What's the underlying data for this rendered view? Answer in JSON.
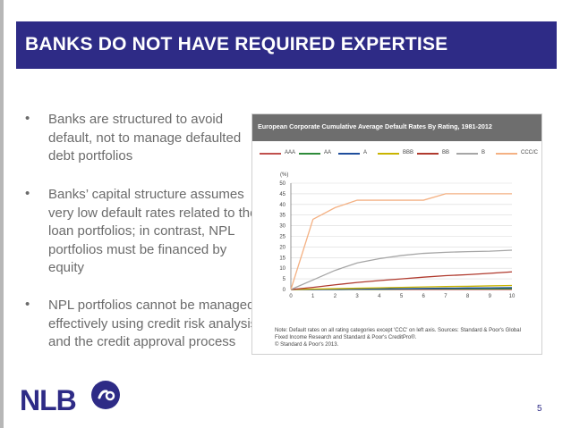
{
  "slide": {
    "title": "BANKS DO NOT HAVE REQUIRED EXPERTISE",
    "bullets": [
      {
        "marker": "•",
        "text": "Banks are structured to avoid default, not to manage defaulted debt portfolios"
      },
      {
        "marker": "•",
        "text": "Banks’ capital structure assumes very low default rates related to the loan portfolios; in contrast, NPL portfolios must be financed by equity"
      },
      {
        "marker": "•",
        "text": "NPL portfolios cannot be managed effectively using credit risk analysis and the credit approval process"
      }
    ],
    "page_number": "5",
    "logo_text": "NLB",
    "colors": {
      "brand": "#2e2b86",
      "text": "#6b6b6b",
      "chart_header": "#6e6e6e"
    }
  },
  "chart_data": {
    "type": "line",
    "title": "European Corporate Cumulative Average Default Rates By Rating, 1981-2012",
    "ylabel": "(%)",
    "xlabel": "",
    "x": [
      0,
      1,
      2,
      3,
      4,
      5,
      6,
      7,
      8,
      9,
      10
    ],
    "xticks": [
      "0",
      "1",
      "2",
      "3",
      "4",
      "5",
      "6",
      "7",
      "8",
      "9",
      "10"
    ],
    "yticks": [
      "0",
      "5",
      "10",
      "15",
      "20",
      "25",
      "30",
      "35",
      "40",
      "45",
      "50"
    ],
    "xlim": [
      0,
      10
    ],
    "ylim": [
      0,
      50
    ],
    "grid": true,
    "legend_position": "top",
    "series": [
      {
        "name": "AAA",
        "color": "#c0504d",
        "values": [
          0,
          0,
          0,
          0,
          0,
          0,
          0,
          0,
          0,
          0,
          0
        ]
      },
      {
        "name": "AA",
        "color": "#2e8b3a",
        "values": [
          0,
          0,
          0,
          0.1,
          0.1,
          0.2,
          0.3,
          0.3,
          0.3,
          0.3,
          0.4
        ]
      },
      {
        "name": "A",
        "color": "#1f4e9c",
        "values": [
          0,
          0,
          0.1,
          0.2,
          0.3,
          0.4,
          0.5,
          0.6,
          0.7,
          0.8,
          0.9
        ]
      },
      {
        "name": "BBB",
        "color": "#c9b400",
        "values": [
          0,
          0.2,
          0.4,
          0.6,
          0.8,
          1.0,
          1.2,
          1.4,
          1.5,
          1.7,
          1.9
        ]
      },
      {
        "name": "BB",
        "color": "#b03a2e",
        "values": [
          0,
          1.0,
          2.2,
          3.3,
          4.2,
          5.0,
          5.8,
          6.5,
          7.0,
          7.6,
          8.3
        ]
      },
      {
        "name": "B",
        "color": "#a6a6a6",
        "values": [
          0,
          4.5,
          9.0,
          12.5,
          14.5,
          16.0,
          17.0,
          17.5,
          17.8,
          18.0,
          18.5
        ]
      },
      {
        "name": "CCC/C",
        "color": "#f4b183",
        "values": [
          0,
          33,
          38.5,
          42,
          42,
          42,
          42,
          45,
          45,
          45,
          45
        ]
      }
    ],
    "note": "Note: Default rates on all rating categories except 'CCC' on left axis. Sources: Standard & Poor's Global Fixed Income Research and Standard & Poor's CreditPro®.",
    "copyright": "© Standard & Poor's 2013."
  }
}
